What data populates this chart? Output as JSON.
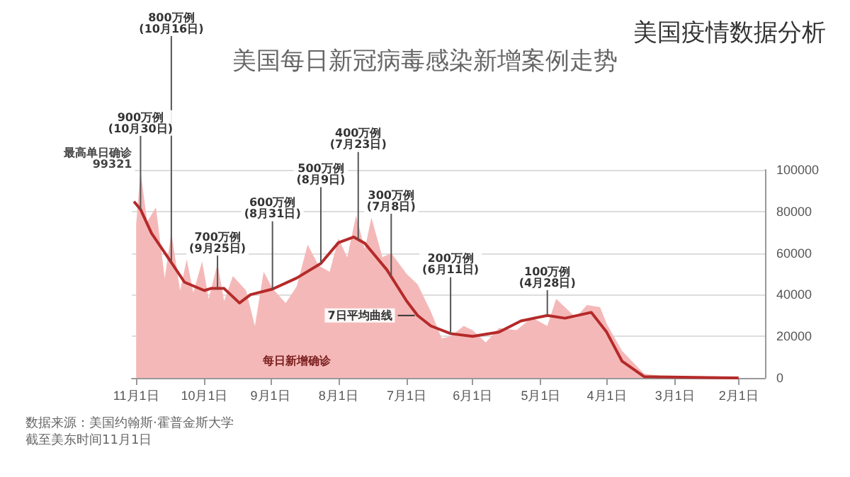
{
  "chart_data": {
    "type": "area",
    "title": "美国每日新冠病毒感染新增案例走势",
    "subtitle": "美国疫情数据分析",
    "xlim": [
      "--11-03",
      "--01-20"
    ],
    "xticks": [
      {
        "value": "--11-01",
        "label": "11月1日"
      },
      {
        "value": "--10-01",
        "label": "10月1日"
      },
      {
        "value": "--09-01",
        "label": "9月1日"
      },
      {
        "value": "--08-01",
        "label": "8月1日"
      },
      {
        "value": "--07-01",
        "label": "7月1日"
      },
      {
        "value": "--06-01",
        "label": "6月1日"
      },
      {
        "value": "--05-01",
        "label": "5月1日"
      },
      {
        "value": "--04-01",
        "label": "4月1日"
      },
      {
        "value": "--03-01",
        "label": "3月1日"
      },
      {
        "value": "--02-01",
        "label": "2月1日"
      }
    ],
    "ylim": [
      0,
      100000
    ],
    "yticks": [
      0,
      20000,
      40000,
      60000,
      80000,
      100000
    ],
    "grid": "y",
    "legend": false,
    "series": [
      {
        "name": "每日新增确诊",
        "color": "#f5b8b8",
        "x": [
          "--02-01",
          "--03-01",
          "--03-15",
          "--03-25",
          "--04-01",
          "--04-04",
          "--04-10",
          "--04-15",
          "--04-24",
          "--04-28",
          "--05-05",
          "--05-12",
          "--05-20",
          "--05-26",
          "--06-01",
          "--06-05",
          "--06-11",
          "--06-15",
          "--06-20",
          "--06-26",
          "--07-01",
          "--07-08",
          "--07-12",
          "--07-17",
          "--07-20",
          "--07-24",
          "--07-28",
          "--08-01",
          "--08-05",
          "--08-10",
          "--08-15",
          "--08-20",
          "--08-25",
          "--08-31",
          "--09-04",
          "--09-08",
          "--09-12",
          "--09-18",
          "--09-22",
          "--09-25",
          "--09-29",
          "--10-02",
          "--10-06",
          "--10-09",
          "--10-12",
          "--10-16",
          "--10-19",
          "--10-23",
          "--10-27",
          "--10-30",
          "--11-01"
        ],
        "values": [
          0,
          0,
          2000,
          13000,
          26000,
          34000,
          35000,
          29000,
          38000,
          25000,
          29000,
          23000,
          24000,
          17000,
          23000,
          25000,
          20000,
          19000,
          32000,
          45000,
          50000,
          60000,
          58000,
          77000,
          62000,
          78000,
          58000,
          67000,
          51000,
          54000,
          64000,
          44000,
          36000,
          43000,
          51000,
          25000,
          42000,
          49000,
          37000,
          55000,
          38000,
          56000,
          41000,
          57000,
          42000,
          70000,
          48000,
          82000,
          75000,
          99321,
          74000
        ]
      },
      {
        "name": "7日平均曲线",
        "type": "line",
        "color": "#b52a2a",
        "x": [
          "--02-01",
          "--03-15",
          "--03-25",
          "--04-01",
          "--04-08",
          "--04-20",
          "--04-28",
          "--05-10",
          "--05-20",
          "--06-01",
          "--06-11",
          "--06-20",
          "--06-26",
          "--07-01",
          "--07-10",
          "--07-20",
          "--07-25",
          "--08-01",
          "--08-09",
          "--08-20",
          "--08-31",
          "--09-10",
          "--09-15",
          "--09-22",
          "--09-28",
          "--10-01",
          "--10-10",
          "--10-16",
          "--10-25",
          "--10-30",
          "--11-02"
        ],
        "values": [
          0,
          600,
          8000,
          22000,
          31500,
          28700,
          30000,
          27400,
          22000,
          20000,
          21300,
          25000,
          30000,
          37000,
          52000,
          64700,
          67700,
          65000,
          55000,
          48000,
          42700,
          40000,
          36000,
          43000,
          43000,
          42000,
          46000,
          55500,
          69500,
          81000,
          84800
        ]
      }
    ],
    "annotations": [
      {
        "text": "最高单日确诊\n99321",
        "x": "--10-30",
        "y": 99321
      },
      {
        "text": "900万例\n(10月30日)",
        "x": "--10-30",
        "y": 81000
      },
      {
        "text": "800万例\n(10月16日)",
        "x": "--10-16",
        "y": 55500
      },
      {
        "text": "700万例\n(9月25日)",
        "x": "--09-25",
        "y": 42500
      },
      {
        "text": "600万例\n(8月31日)",
        "x": "--08-31",
        "y": 42700
      },
      {
        "text": "500万例\n(8月9日)",
        "x": "--08-09",
        "y": 55000
      },
      {
        "text": "400万例\n(7月23日)",
        "x": "--07-23",
        "y": 66500
      },
      {
        "text": "300万例\n(7月8日)",
        "x": "--07-08",
        "y": 49000
      },
      {
        "text": "200万例\n(6月11日)",
        "x": "--06-11",
        "y": 21300
      },
      {
        "text": "100万例\n(4月28日)",
        "x": "--04-28",
        "y": 30000
      },
      "数据来源：美国约翰斯·霍普金斯大学",
      "截至美东时间11月1日"
    ]
  }
}
